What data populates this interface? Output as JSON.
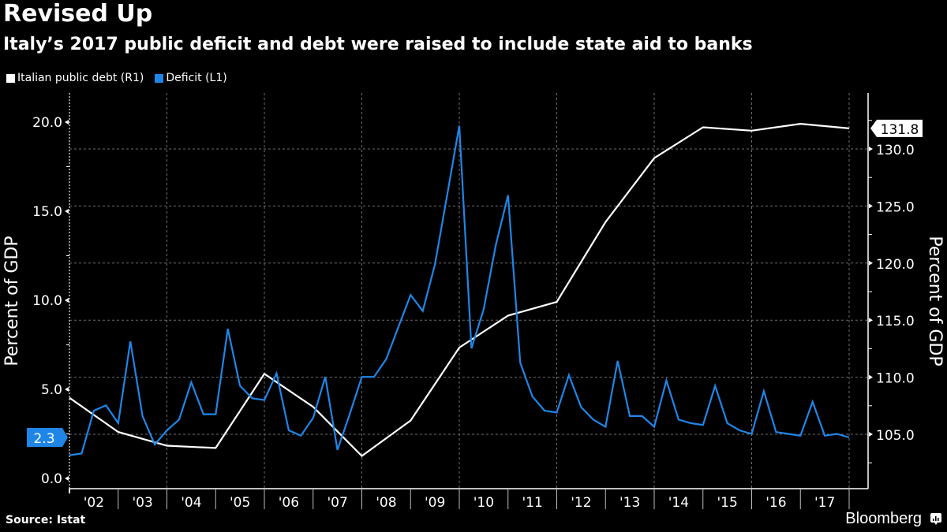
{
  "header": {
    "title": "Revised Up",
    "subtitle": "Italy’s 2017 public deficit and debt were raised to include state aid to banks"
  },
  "legend": [
    {
      "label": "Italian public debt (R1)",
      "color": "#ffffff"
    },
    {
      "label": "Deficit (L1)",
      "color": "#1f86e8"
    }
  ],
  "footer": {
    "source": "Source: Istat",
    "brand": "Bloomberg",
    "brand_icon": "bloomberg-chart-icon"
  },
  "chart_data": {
    "type": "line",
    "title": "Revised Up",
    "subtitle": "Italy’s 2017 public deficit and debt were raised to include state aid to banks",
    "x_tick_labels": [
      "'02",
      "'03",
      "'04",
      "'05",
      "'06",
      "'07",
      "'08",
      "'09",
      "'10",
      "'11",
      "'12",
      "'13",
      "'14",
      "'15",
      "'16",
      "'17"
    ],
    "x_range": [
      2002.0,
      2018.0
    ],
    "left_axis": {
      "label": "Percent of GDP",
      "range": [
        -0.5,
        21.0
      ],
      "ticks": [
        0.0,
        5.0,
        10.0,
        15.0,
        20.0
      ],
      "tick_labels": [
        "0.0",
        "5.0",
        "10.0",
        "15.0",
        "20.0"
      ]
    },
    "right_axis": {
      "label": "Percent of GDP",
      "range": [
        101.0,
        134.0
      ],
      "ticks": [
        105.0,
        110.0,
        115.0,
        120.0,
        125.0,
        130.0
      ],
      "tick_labels": [
        "105.0",
        "110.0",
        "115.0",
        "120.0",
        "125.0",
        "130.0"
      ]
    },
    "grid": true,
    "legend_position": "top-left",
    "series": [
      {
        "name": "Italian public debt (R1)",
        "axis": "right",
        "color": "#ffffff",
        "x": [
          2002,
          2003,
          2004,
          2005,
          2006,
          2007,
          2008,
          2009,
          2010,
          2011,
          2012,
          2013,
          2014,
          2015,
          2016,
          2017,
          2018
        ],
        "values": [
          108.2,
          105.2,
          104.0,
          103.8,
          110.3,
          107.4,
          103.1,
          106.2,
          112.6,
          115.4,
          116.6,
          123.6,
          129.2,
          131.9,
          131.6,
          132.2,
          131.8
        ],
        "last_value_label": "131.8"
      },
      {
        "name": "Deficit (L1)",
        "axis": "left",
        "color": "#1f86e8",
        "x_start": 2002.0,
        "x_step": 0.25,
        "values": [
          1.3,
          1.4,
          3.8,
          4.1,
          3.1,
          7.7,
          3.5,
          1.9,
          2.7,
          3.3,
          5.4,
          3.6,
          3.6,
          8.4,
          5.2,
          4.5,
          4.4,
          5.9,
          2.7,
          2.4,
          3.4,
          5.7,
          1.6,
          3.6,
          5.7,
          5.7,
          6.7,
          8.5,
          10.3,
          9.4,
          12.0,
          15.9,
          19.8,
          7.3,
          9.5,
          13.1,
          15.9,
          6.5,
          4.6,
          3.8,
          3.7,
          5.8,
          4.0,
          3.3,
          2.9,
          6.6,
          3.5,
          3.5,
          2.9,
          5.5,
          3.3,
          3.1,
          3.0,
          5.2,
          3.1,
          2.7,
          2.5,
          4.9,
          2.6,
          2.5,
          2.4,
          4.3,
          2.4,
          2.5,
          2.3
        ],
        "last_value_label": "2.3"
      }
    ]
  }
}
